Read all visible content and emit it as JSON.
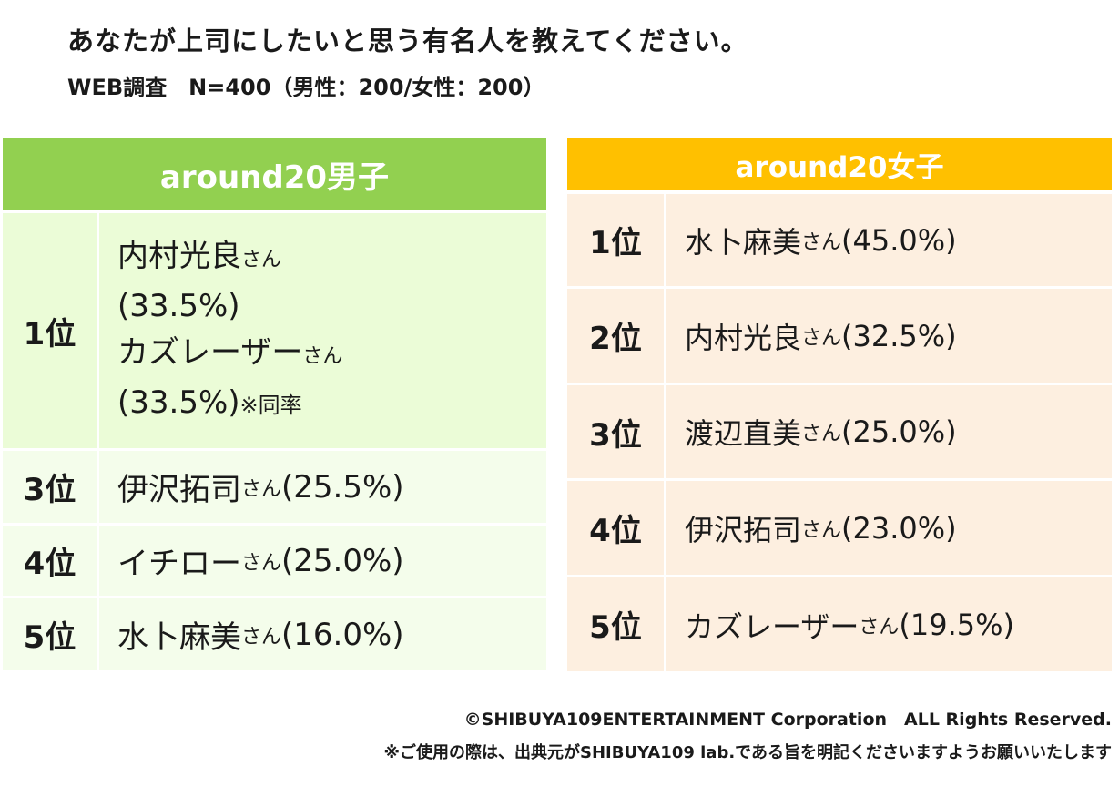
{
  "title": "あなたが上司にしたいと思う有名人を教えてください。",
  "subtitle": "WEB調査　N=400（男性：200/女性：200）",
  "male": {
    "header": "around20男子",
    "rows": [
      {
        "rank": "1位",
        "lines": [
          {
            "name": "内村光良",
            "suffix": "さん",
            "pct": ""
          },
          {
            "name": "(33.5%)",
            "suffix": "",
            "pct": ""
          },
          {
            "name": "カズレーザー",
            "suffix": "さん",
            "pct": ""
          },
          {
            "name": "(33.5%)",
            "suffix": "",
            "pct": "",
            "note": "※同率"
          }
        ]
      },
      {
        "rank": "3位",
        "name": "伊沢拓司",
        "suffix": "さん",
        "pct": "(25.5%)"
      },
      {
        "rank": "4位",
        "name": "イチロー",
        "suffix": "さん",
        "pct": "(25.0%)"
      },
      {
        "rank": "5位",
        "name": "水卜麻美",
        "suffix": "さん",
        "pct": "(16.0%)"
      }
    ]
  },
  "female": {
    "header": "around20女子",
    "rows": [
      {
        "rank": "1位",
        "name": "水卜麻美",
        "suffix": "さん",
        "pct": "(45.0%)"
      },
      {
        "rank": "2位",
        "name": "内村光良",
        "suffix": "さん",
        "pct": "(32.5%)"
      },
      {
        "rank": "3位",
        "name": "渡辺直美",
        "suffix": "さん",
        "pct": "(25.0%)"
      },
      {
        "rank": "4位",
        "name": "伊沢拓司",
        "suffix": "さん",
        "pct": "(23.0%)"
      },
      {
        "rank": "5位",
        "name": "カズレーザー",
        "suffix": "さん",
        "pct": "(19.5%)"
      }
    ]
  },
  "footer": {
    "copyright": "©SHIBUYA109ENTERTAINMENT Corporation　ALL Rights Reserved.",
    "notice": "※ご使用の際は、出典元がSHIBUYA109 lab.である旨を明記くださいますようお願いいたします"
  },
  "colors": {
    "male_header": "#92d050",
    "male_row_top": "#ebfcd7",
    "male_row": "#f4fdeb",
    "female_header": "#ffc000",
    "female_row": "#fdefe0"
  }
}
